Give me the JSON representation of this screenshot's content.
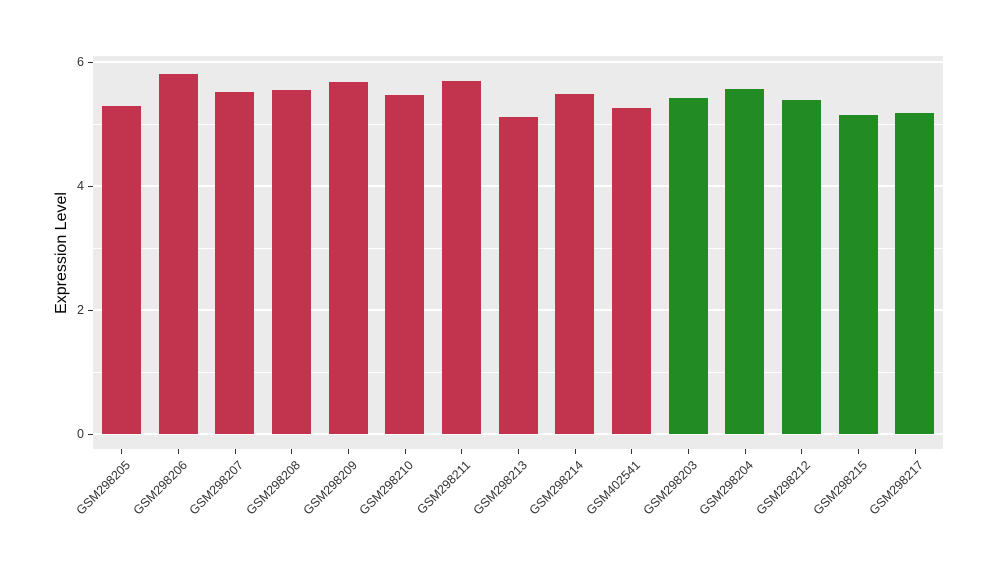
{
  "chart_data": {
    "type": "bar",
    "title": "",
    "xlabel": "",
    "ylabel": "Expression Level",
    "ylim": [
      0,
      6.35
    ],
    "yticks": [
      0,
      2,
      4,
      6
    ],
    "yticks_minor": [
      1,
      3,
      5
    ],
    "grid": "major and minor horizontal white gridlines on grey panel",
    "legend_position": "none",
    "categories": [
      "GSM298205",
      "GSM298206",
      "GSM298207",
      "GSM298208",
      "GSM298209",
      "GSM298210",
      "GSM298211",
      "GSM298213",
      "GSM298214",
      "GSM402541",
      "GSM298203",
      "GSM298204",
      "GSM298212",
      "GSM298215",
      "GSM298217"
    ],
    "values": [
      5.29,
      5.8,
      5.52,
      5.55,
      5.68,
      5.47,
      5.69,
      5.11,
      5.48,
      5.26,
      5.42,
      5.57,
      5.38,
      5.15,
      5.18
    ],
    "bar_colors": [
      "#C2334D",
      "#C2334D",
      "#C2334D",
      "#C2334D",
      "#C2334D",
      "#C2334D",
      "#C2334D",
      "#C2334D",
      "#C2334D",
      "#C2334D",
      "#238B23",
      "#238B23",
      "#238B23",
      "#238B23",
      "#238B23"
    ]
  },
  "style": {
    "panel_bg": "#EBEBEB",
    "grid_color": "#FFFFFF",
    "red_group_color": "#C2334D",
    "green_group_color": "#238B23",
    "axis_text_color": "#333333",
    "axis_title_color": "#000000"
  }
}
